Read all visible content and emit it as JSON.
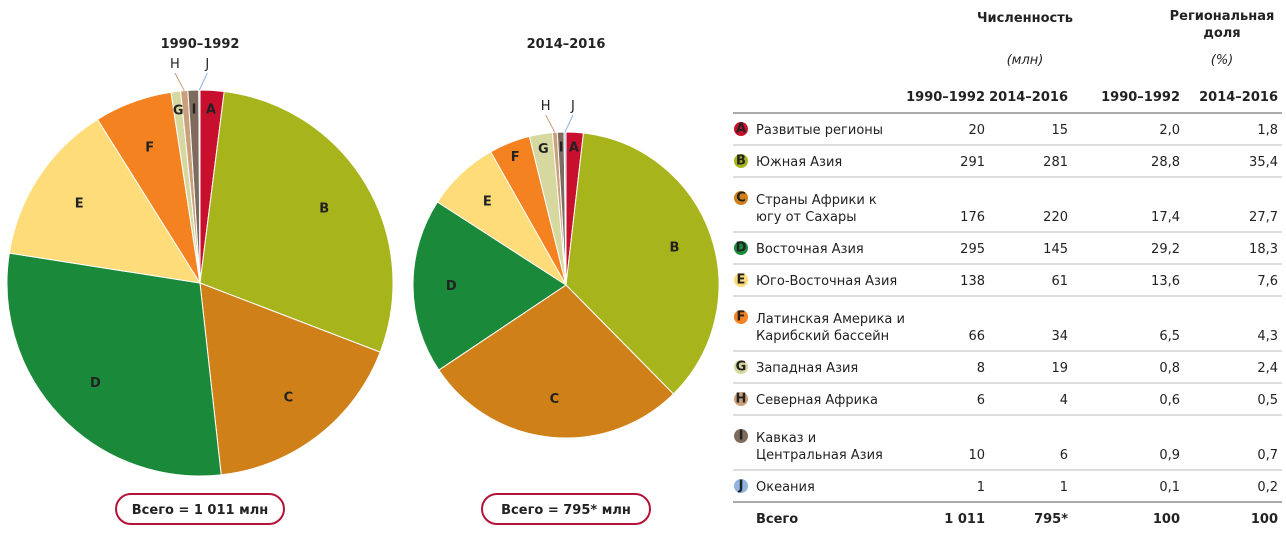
{
  "charts": [
    {
      "type": "pie",
      "title": "1990–1992",
      "total": "Всего = 1 011 млн"
    },
    {
      "type": "pie",
      "title": "2014–2016",
      "total": "Всего = 795* млн"
    }
  ],
  "table": {
    "header": {
      "count": "Численность",
      "count_unit": "(млн)",
      "share": [
        "Региональная",
        "доля"
      ],
      "share_unit": "(%)",
      "periods": [
        "1990–1992",
        "2014–2016",
        "1990–1992",
        "2014–2016"
      ]
    },
    "rows": [
      {
        "letter": "A",
        "color": "#c8102e",
        "name": [
          "Развитые регионы"
        ],
        "values": [
          "20",
          "15",
          "2,0",
          "1,8"
        ]
      },
      {
        "letter": "B",
        "color": "#a8b41c",
        "name": [
          "Южная Азия"
        ],
        "values": [
          "291",
          "281",
          "28,8",
          "35,4"
        ]
      },
      {
        "letter": "C",
        "color": "#d08018",
        "name": [
          "Страны Африки к",
          "югу от Сахары"
        ],
        "values": [
          "176",
          "220",
          "17,4",
          "27,7"
        ]
      },
      {
        "letter": "D",
        "color": "#1a8a3a",
        "name": [
          "Восточная Азия"
        ],
        "values": [
          "295",
          "145",
          "29,2",
          "18,3"
        ]
      },
      {
        "letter": "E",
        "color": "#fedc7a",
        "name": [
          "Юго-Восточная Азия"
        ],
        "values": [
          "138",
          "61",
          "13,6",
          "7,6"
        ]
      },
      {
        "letter": "F",
        "color": "#f58220",
        "name": [
          "Латинская Америка и",
          "Карибский бассейн"
        ],
        "values": [
          "66",
          "34",
          "6,5",
          "4,3"
        ]
      },
      {
        "letter": "G",
        "color": "#d6d8a0",
        "name": [
          "Западная Азия"
        ],
        "values": [
          "8",
          "19",
          "0,8",
          "2,4"
        ]
      },
      {
        "letter": "H",
        "color": "#c9a07a",
        "name": [
          "Северная Африка"
        ],
        "values": [
          "6",
          "4",
          "0,6",
          "0,5"
        ]
      },
      {
        "letter": "I",
        "color": "#7f6a5e",
        "name": [
          "Кавказ и",
          "Центральная Азия"
        ],
        "values": [
          "10",
          "6",
          "0,9",
          "0,7"
        ]
      },
      {
        "letter": "J",
        "color": "#8fb4e0",
        "name": [
          "Океания"
        ],
        "values": [
          "1",
          "1",
          "0,1",
          "0,2"
        ]
      }
    ],
    "total": {
      "name": "Всего",
      "values": [
        "1 011",
        "795*",
        "100",
        "100"
      ]
    }
  }
}
